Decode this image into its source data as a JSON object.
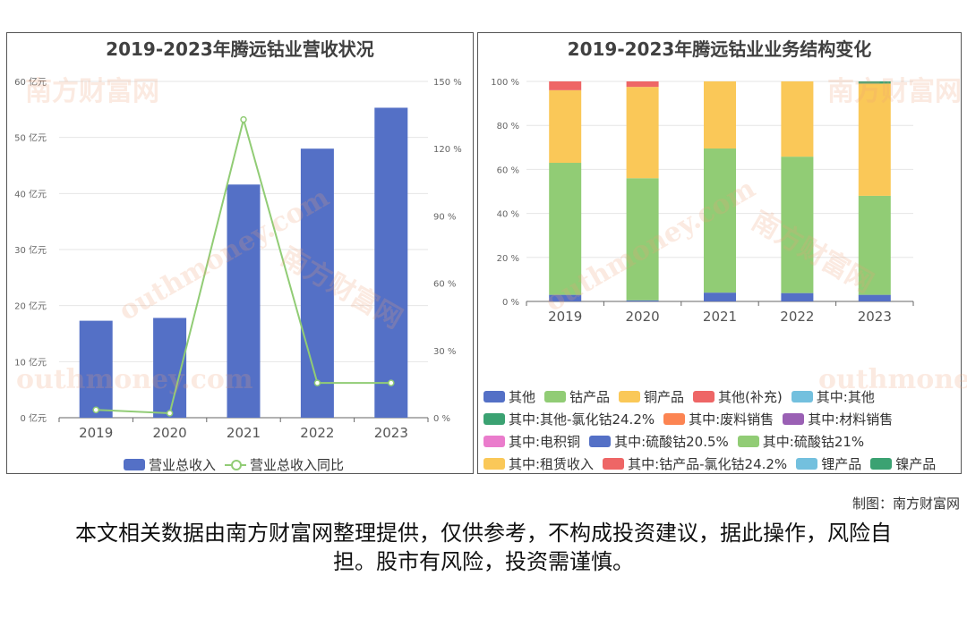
{
  "credit": "制图：南方财富网",
  "disclaimer": "本文相关数据由南方财富网整理提供，仅供参考，不构成投资建议，据此操作，风险自担。股市有风险，投资需谨慎。",
  "watermark": {
    "cn": "南方财富网",
    "en": "outhmoney.com"
  },
  "chart_data": [
    {
      "type": "bar",
      "title": "2019-2023年腾远钴业营收状况",
      "categories": [
        "2019",
        "2020",
        "2021",
        "2022",
        "2023"
      ],
      "y_left": {
        "ticks": [
          "0 亿元",
          "10 亿元",
          "20 亿元",
          "30 亿元",
          "40 亿元",
          "50 亿元",
          "60 亿元"
        ],
        "range": [
          0,
          60
        ],
        "unit": "亿元"
      },
      "y_right": {
        "ticks": [
          "0 %",
          "30 %",
          "60 %",
          "90 %",
          "120 %",
          "150 %"
        ],
        "range": [
          0,
          150
        ],
        "unit": "%"
      },
      "series": [
        {
          "name": "营业总收入",
          "kind": "bar",
          "axis": "left",
          "color": "#5470c6",
          "values": [
            17.3,
            17.8,
            41.6,
            48.0,
            55.3
          ]
        },
        {
          "name": "营业总收入同比",
          "kind": "line",
          "axis": "right",
          "color": "#91cc75",
          "values": [
            3.5,
            2.0,
            133.0,
            15.5,
            15.5
          ]
        }
      ],
      "grid": true,
      "legend_position": "bottom"
    },
    {
      "type": "bar",
      "stacked": true,
      "title": "2019-2023年腾远钴业业务结构变化",
      "categories": [
        "2019",
        "2020",
        "2021",
        "2022",
        "2023"
      ],
      "y": {
        "ticks": [
          "0 %",
          "20 %",
          "40 %",
          "60 %",
          "80 %",
          "100 %"
        ],
        "range": [
          0,
          100
        ]
      },
      "series": [
        {
          "name": "其他",
          "color": "#5470c6",
          "values": [
            3.0,
            0.5,
            4.0,
            3.8,
            3.0
          ]
        },
        {
          "name": "钴产品",
          "color": "#91cc75",
          "values": [
            60.0,
            55.5,
            65.5,
            62.0,
            45.0
          ]
        },
        {
          "name": "铜产品",
          "color": "#fac858",
          "values": [
            33.0,
            41.5,
            30.5,
            34.2,
            51.0
          ]
        },
        {
          "name": "其他(补充)",
          "color": "#ee6666",
          "values": [
            4.0,
            2.5,
            0,
            0,
            0
          ]
        },
        {
          "name": "其中:其他",
          "color": "#73c0de",
          "values": [
            0,
            0,
            0,
            0,
            0
          ]
        },
        {
          "name": "其中:其他-氯化钴24.2%",
          "color": "#3ba272",
          "values": [
            0,
            0,
            0,
            0,
            1.0
          ]
        },
        {
          "name": "其中:废料销售",
          "color": "#fc8452",
          "values": [
            0,
            0,
            0,
            0,
            0
          ]
        },
        {
          "name": "其中:材料销售",
          "color": "#9a60b4",
          "values": [
            0,
            0,
            0,
            0,
            0
          ]
        },
        {
          "name": "其中:电积铜",
          "color": "#ea7ccc",
          "values": [
            0,
            0,
            0,
            0,
            0
          ]
        },
        {
          "name": "其中:硫酸钴20.5%",
          "color": "#5470c6",
          "values": [
            0,
            0,
            0,
            0,
            0
          ]
        },
        {
          "name": "其中:硫酸钴21%",
          "color": "#91cc75",
          "values": [
            0,
            0,
            0,
            0,
            0
          ]
        },
        {
          "name": "其中:租赁收入",
          "color": "#fac858",
          "values": [
            0,
            0,
            0,
            0,
            0
          ]
        },
        {
          "name": "其中:钴产品-氯化钴24.2%",
          "color": "#ee6666",
          "values": [
            0,
            0,
            0,
            0,
            0
          ]
        },
        {
          "name": "锂产品",
          "color": "#73c0de",
          "values": [
            0,
            0,
            0,
            0,
            0
          ]
        },
        {
          "name": "镍产品",
          "color": "#3ba272",
          "values": [
            0,
            0,
            0,
            0,
            0
          ]
        }
      ],
      "grid": true,
      "legend_position": "bottom"
    }
  ]
}
